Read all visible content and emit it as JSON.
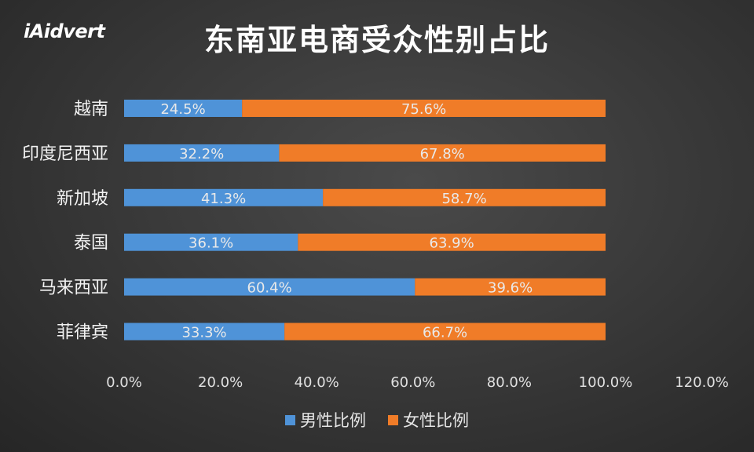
{
  "logo_text": "iAidvert",
  "chart_data": {
    "type": "bar",
    "orientation": "horizontal",
    "stacked": true,
    "title": "东南亚电商受众性别占比",
    "categories": [
      "越南",
      "印度尼西亚",
      "新加坡",
      "泰国",
      "马来西亚",
      "菲律宾"
    ],
    "series": [
      {
        "name": "男性比例",
        "values": [
          24.5,
          32.2,
          41.3,
          36.1,
          60.4,
          33.3
        ],
        "labels": [
          "24.5%",
          "32.2%",
          "41.3%",
          "36.1%",
          "60.4%",
          "33.3%"
        ],
        "color": "#4f93d8"
      },
      {
        "name": "女性比例",
        "values": [
          75.6,
          67.8,
          58.7,
          63.9,
          39.6,
          66.7
        ],
        "labels": [
          "75.6%",
          "67.8%",
          "58.7%",
          "63.9%",
          "39.6%",
          "66.7%"
        ],
        "color": "#f07c28"
      }
    ],
    "xlim": [
      0,
      120
    ],
    "xticks": [
      "0.0%",
      "20.0%",
      "40.0%",
      "60.0%",
      "80.0%",
      "100.0%",
      "120.0%"
    ],
    "legend_position": "bottom",
    "grid": false
  }
}
